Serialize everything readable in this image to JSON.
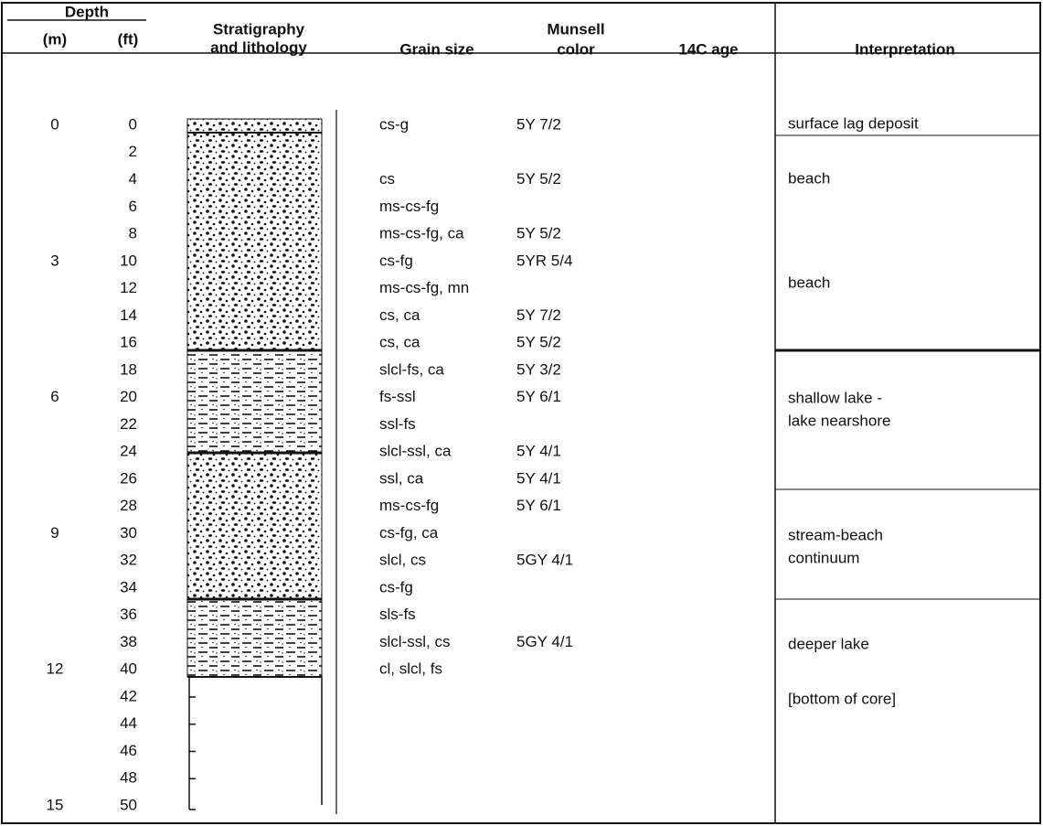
{
  "header": {
    "depth": "Depth",
    "m": "(m)",
    "ft": "(ft)",
    "strat": [
      "Stratigraphy",
      "and lithology"
    ],
    "grain": "Grain size",
    "munsell": [
      "Munsell",
      "color"
    ],
    "age": "14C age",
    "interp": "Interpretation"
  },
  "rows": [
    {
      "ft": 0,
      "m": 0,
      "grain": "cs-g",
      "munsell": "5Y 7/2"
    },
    {
      "ft": 2
    },
    {
      "ft": 4,
      "grain": "cs",
      "munsell": "5Y 5/2"
    },
    {
      "ft": 6,
      "grain": "ms-cs-fg"
    },
    {
      "ft": 8,
      "grain": "ms-cs-fg, ca",
      "munsell": "5Y 5/2"
    },
    {
      "ft": 10,
      "m": 3,
      "grain": "cs-fg",
      "munsell": "5YR 5/4"
    },
    {
      "ft": 12,
      "grain": "ms-cs-fg, mn"
    },
    {
      "ft": 14,
      "grain": "cs, ca",
      "munsell": "5Y 7/2"
    },
    {
      "ft": 16,
      "grain": "cs, ca",
      "munsell": "5Y 5/2"
    },
    {
      "ft": 18,
      "grain": "slcl-fs, ca",
      "munsell": "5Y 3/2"
    },
    {
      "ft": 20,
      "m": 6,
      "grain": "fs-ssl",
      "munsell": "5Y 6/1"
    },
    {
      "ft": 22,
      "grain": "ssl-fs"
    },
    {
      "ft": 24,
      "grain": "slcl-ssl, ca",
      "munsell": "5Y 4/1"
    },
    {
      "ft": 26,
      "grain": "ssl, ca",
      "munsell": "5Y 4/1"
    },
    {
      "ft": 28,
      "grain": "ms-cs-fg",
      "munsell": "5Y 6/1"
    },
    {
      "ft": 30,
      "m": 9,
      "grain": "cs-fg, ca"
    },
    {
      "ft": 32,
      "grain": "slcl, cs",
      "munsell": "5GY 4/1"
    },
    {
      "ft": 34,
      "grain": "cs-fg"
    },
    {
      "ft": 36,
      "grain": "sls-fs"
    },
    {
      "ft": 38,
      "grain": "slcl-ssl, cs",
      "munsell": "5GY 4/1"
    },
    {
      "ft": 40,
      "m": 12,
      "grain": "cl, slcl, fs"
    },
    {
      "ft": 42
    },
    {
      "ft": 44
    },
    {
      "ft": 46
    },
    {
      "ft": 48
    },
    {
      "ft": 50,
      "m": 15
    }
  ],
  "interpretation": [
    [
      "surface lag deposit"
    ],
    [
      "beach"
    ],
    [
      "beach"
    ],
    [
      "shallow lake -",
      "lake nearshore"
    ],
    [
      "stream-beach",
      "continuum"
    ],
    [
      "deeper lake"
    ],
    [
      "[bottom of core]"
    ]
  ]
}
